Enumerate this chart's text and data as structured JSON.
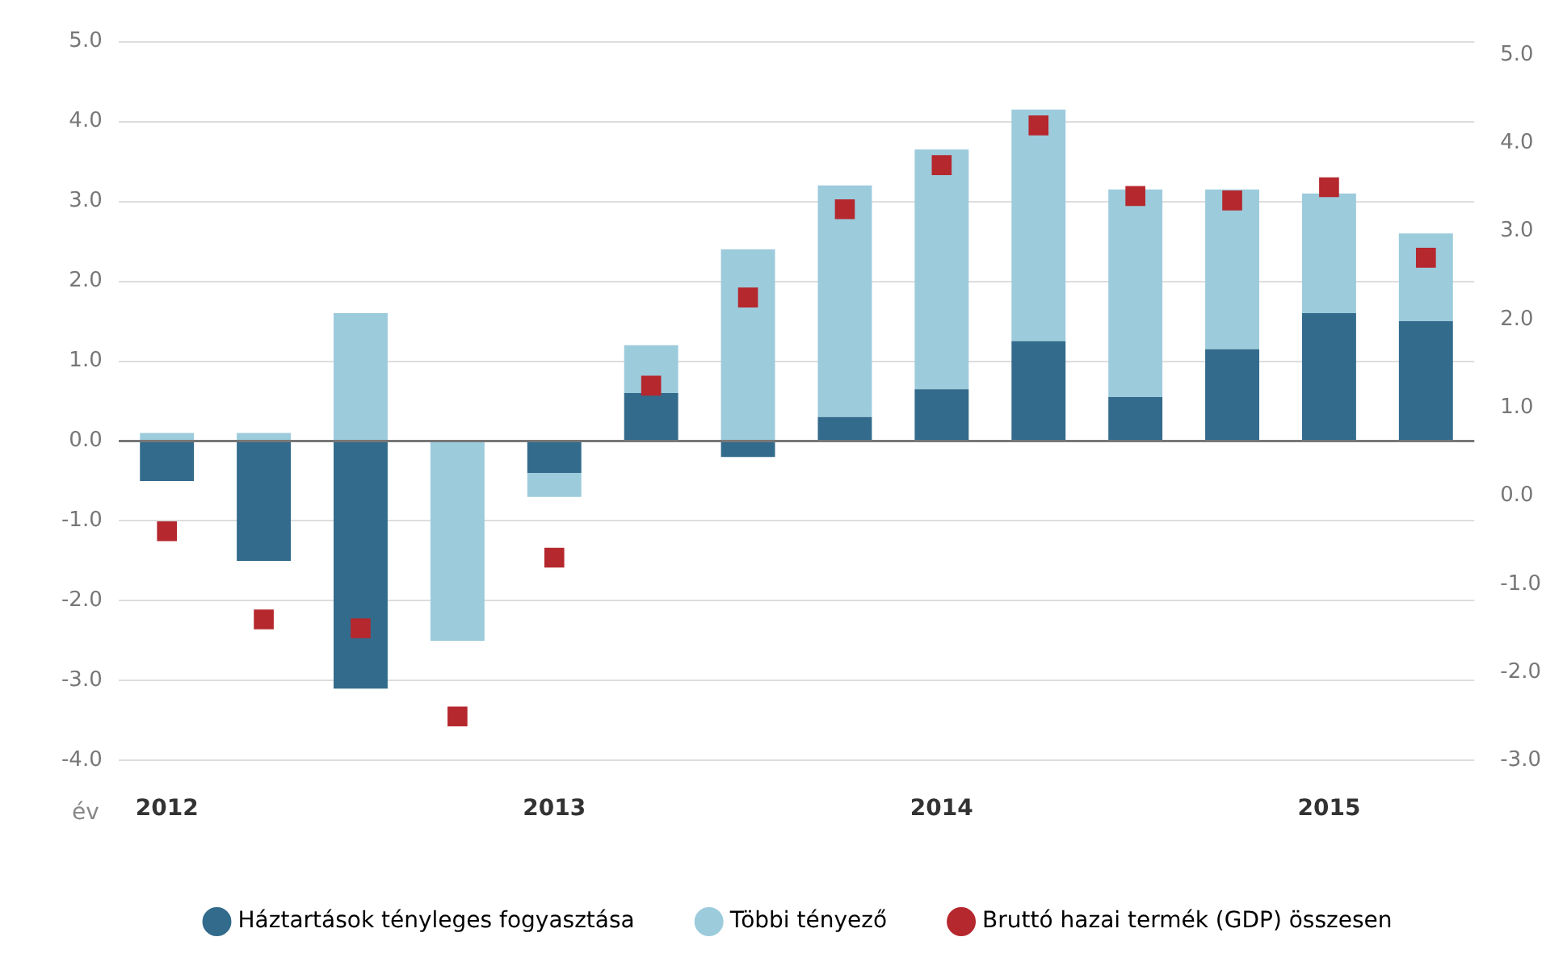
{
  "chart_data": {
    "type": "bar",
    "stacked": true,
    "xlabel": "év",
    "categories": [
      "2012",
      null,
      null,
      null,
      "2013",
      null,
      null,
      null,
      "2014",
      null,
      null,
      null,
      "2015",
      null
    ],
    "series": [
      {
        "name": "Háztartások tényleges fogyasztása",
        "color": "#336b8c",
        "values": [
          -0.5,
          -1.5,
          -3.1,
          0,
          -0.4,
          0.6,
          -0.2,
          0.3,
          0.65,
          1.25,
          0.55,
          1.15,
          1.6,
          1.5
        ]
      },
      {
        "name": "Többi tényező",
        "color": "#9ccbdc",
        "values": [
          0.1,
          0.1,
          1.6,
          -2.5,
          -0.3,
          0.6,
          2.4,
          2.9,
          3.0,
          2.9,
          2.6,
          2.0,
          1.5,
          1.1
        ]
      },
      {
        "name": "Bruttó hazai termék (GDP) összesen",
        "type": "scatter",
        "axis": "y2",
        "color": "#b5282e",
        "marker": "square",
        "values": [
          -0.4,
          -1.4,
          -1.5,
          -2.5,
          -0.7,
          1.25,
          2.25,
          3.25,
          3.75,
          4.2,
          3.4,
          3.35,
          3.5,
          2.7
        ]
      }
    ],
    "ylim": [
      -4,
      5
    ],
    "yticks": [
      {
        "value": -4,
        "label": "-4.0"
      },
      {
        "value": -3,
        "label": "-3.0"
      },
      {
        "value": -2,
        "label": "-2.0"
      },
      {
        "value": -1,
        "label": "-1.0"
      },
      {
        "value": 0,
        "label": "0.0"
      },
      {
        "value": 1,
        "label": "1.0"
      },
      {
        "value": 2,
        "label": "2.0"
      },
      {
        "value": 3,
        "label": "3.0"
      },
      {
        "value": 4,
        "label": "4.0"
      },
      {
        "value": 5,
        "label": "5.0"
      }
    ],
    "y2lim": [
      -3,
      5.15
    ],
    "y2ticks": [
      {
        "value": -3,
        "label": "-3.0"
      },
      {
        "value": -2,
        "label": "-2.0"
      },
      {
        "value": -1,
        "label": "-1.0"
      },
      {
        "value": 0,
        "label": "0.0"
      },
      {
        "value": 1,
        "label": "1.0"
      },
      {
        "value": 2,
        "label": "2.0"
      },
      {
        "value": 3,
        "label": "3.0"
      },
      {
        "value": 4,
        "label": "4.0"
      },
      {
        "value": 5,
        "label": "5.0"
      }
    ],
    "grid": "y",
    "legend": "bottom"
  }
}
